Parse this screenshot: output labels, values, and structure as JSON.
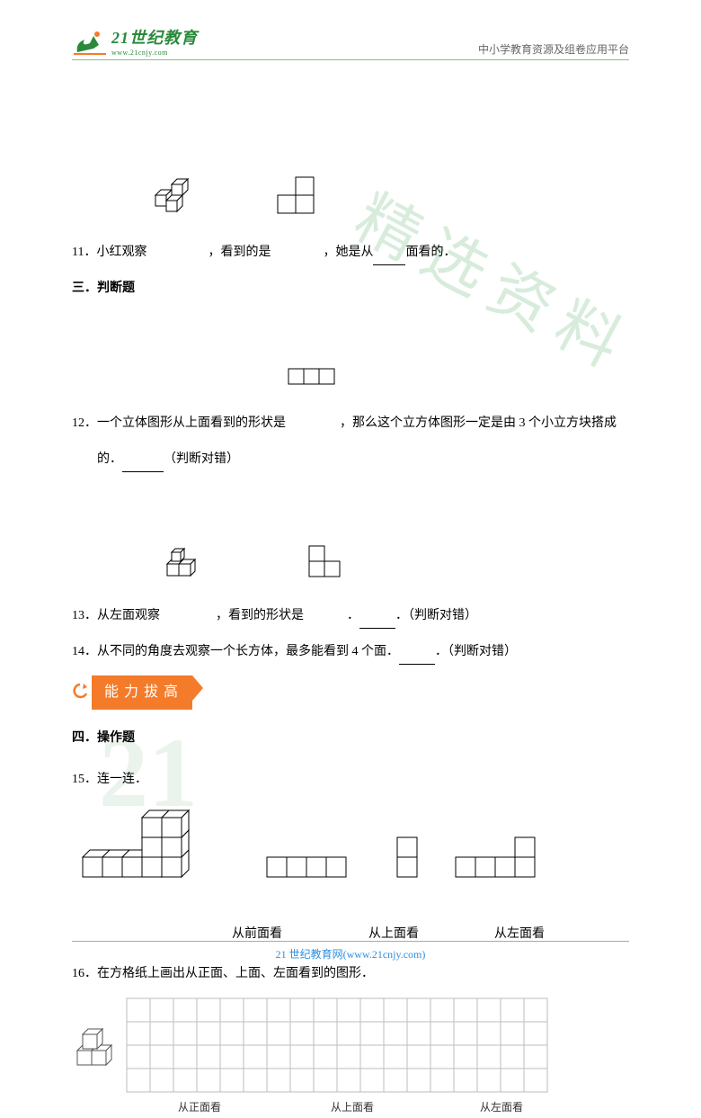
{
  "logo": {
    "title_text": "21世纪教育",
    "subtitle_text": "www.21cnjy.com",
    "green": "#2a8a3a",
    "orange": "#f47b2a"
  },
  "header": {
    "right_text": "中小学教育资源及组卷应用平台"
  },
  "q11": {
    "num": "11．",
    "t1": "小红观察",
    "t2": "，看到的是",
    "t3": "，她是从",
    "t4": "面看的．",
    "blank_w": 36
  },
  "section3": {
    "title": "三．判断题"
  },
  "q12": {
    "num": "12．",
    "t1": "一个立体图形从上面看到的形状是",
    "t2": "，那么这个立方体图形一定是由 3 个小立方块搭成",
    "t3": "的．",
    "t4": "（判断对错）",
    "blank_w": 46
  },
  "q13": {
    "num": "13．",
    "t1": "从左面观察",
    "t2": "，看到的形状是",
    "t3": "．",
    "t4": "．（判断对错）",
    "blank_w": 40
  },
  "q14": {
    "num": "14．",
    "t1": "从不同的角度去观察一个长方体，最多能看到 4 个面．",
    "t2": "．（判断对错）",
    "blank_w": 40
  },
  "banner": {
    "text": "能力拔高",
    "bg": "#f47b2a",
    "arrow_color": "#f47b2a"
  },
  "section4": {
    "title": "四．操作题"
  },
  "q15": {
    "num": "15．",
    "t1": "连一连．",
    "labels": [
      "从前面看",
      "从上面看",
      "从左面看"
    ],
    "label_offsets": [
      178,
      96,
      84
    ]
  },
  "q16": {
    "num": "16．",
    "t1": "在方格纸上画出从正面、上面、左面看到的图形．",
    "grid": {
      "cols": 18,
      "rows": 4,
      "cell": 26,
      "labels": [
        "从正面看",
        "从上面看",
        "从左面看"
      ]
    }
  },
  "watermark": {
    "text": "精选资料",
    "big": "21"
  },
  "footer": {
    "text": "21 世纪教育网(www.21cnjy.com)",
    "color": "#2f8fdf"
  },
  "svg_style": {
    "stroke": "#000000",
    "stroke_width": 1,
    "fill": "#ffffff",
    "cell3d": 18,
    "cell2d": 22
  }
}
